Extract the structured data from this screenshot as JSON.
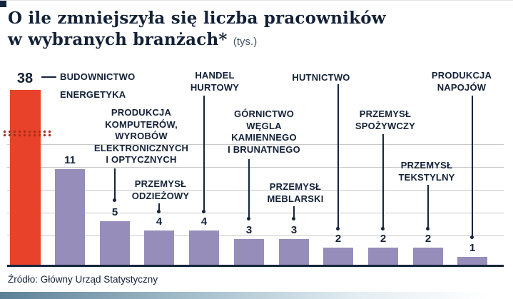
{
  "header": {
    "title_line1": "O ile zmniejszyła się liczba pracowników",
    "title_line2": "w wybranych branżach*",
    "unit_note": "(tys.)"
  },
  "footer": {
    "source": "Źródło: Główny Urząd Statystyczny"
  },
  "colors": {
    "accent_red": "#E8432A",
    "bar_purple": "#968DBB",
    "ink_navy": "#15253D",
    "grid_gray": "#C9C9C9"
  },
  "chart_data": {
    "type": "bar",
    "title": "O ile zmniejszyła się liczba pracowników w wybranych branżach* (tys.)",
    "unit": "tys.",
    "grid": true,
    "axis_break_on_first_bar": true,
    "categories": [
      "BUDOWNICTWO",
      "ENERGETYKA",
      "PRODUKCJA KOMPUTERÓW, WYROBÓW ELEKTRONICZNYCH I OPTYCZNYCH",
      "PRZEMYSŁ ODZIEŻOWY",
      "HANDEL HURTOWY",
      "GÓRNICTWO WĘGLA KAMIENNEGO I BRUNATNEGO",
      "PRZEMYSŁ MEBLARSKI",
      "HUTNICTWO",
      "PRZEMYSŁ SPOŻYWCZY",
      "PRZEMYSŁ TEKSTYLNY",
      "PRODUKCJA NAPOJÓW"
    ],
    "values": [
      38,
      11,
      5,
      4,
      4,
      3,
      3,
      2,
      2,
      2,
      1
    ],
    "display_labels": [
      "BUDOWNICTWO",
      "ENERGETYKA",
      "PRODUKCJA\nKOMPUTERÓW,\nWYROBÓW\nELEKTRONICZNYCH\nI OPTYCZNYCH",
      "PRZEMYSŁ\nODZIEŻOWY",
      "HANDEL\nHURTOWY",
      "GÓRNICTWO\nWĘGLA\nKAMIENNEGO\nI BRUNATNEGO",
      "PRZEMYSŁ\nMEBLARSKI",
      "HUTNICTWO",
      "PRZEMYSŁ\nSPOŻYWCZY",
      "PRZEMYSŁ\nTEKSTYLNY",
      "PRODUKCJA\nNAPOJÓW"
    ]
  }
}
